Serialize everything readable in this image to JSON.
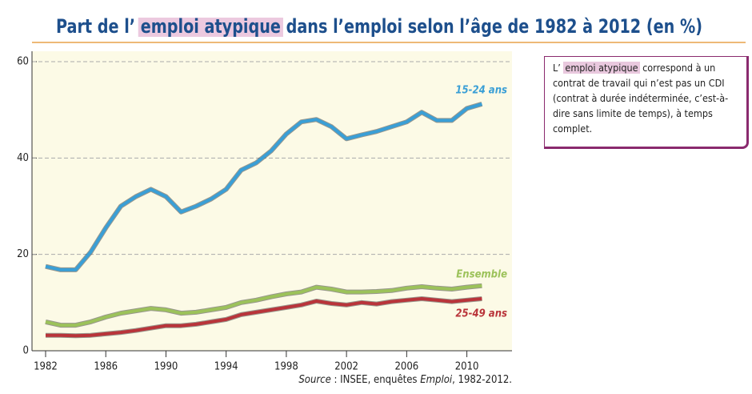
{
  "chart_data": {
    "type": "line",
    "title": [
      "Part de l’ ",
      "emploi atypique",
      " dans l’emploi selon l’âge de 1982 à 2012 (en %)"
    ],
    "x": [
      1982,
      1983,
      1984,
      1985,
      1986,
      1987,
      1988,
      1989,
      1990,
      1991,
      1992,
      1993,
      1994,
      1995,
      1996,
      1997,
      1998,
      1999,
      2000,
      2001,
      2002,
      2003,
      2004,
      2005,
      2006,
      2007,
      2008,
      2009,
      2010,
      2011
    ],
    "series": [
      {
        "name": "15-24 ans",
        "color": "#3a9fd6",
        "values": [
          17.5,
          16.8,
          16.8,
          20.5,
          25.5,
          30,
          32,
          33.5,
          32,
          28.8,
          30,
          31.5,
          33.5,
          37.5,
          39,
          41.5,
          45,
          47.5,
          48,
          46.5,
          44,
          44.8,
          45.5,
          46.5,
          47.5,
          49.5,
          47.8,
          47.8,
          50.3,
          51.2
        ]
      },
      {
        "name": "Ensemble",
        "color": "#9cc25a",
        "values": [
          6,
          5.3,
          5.3,
          6,
          7,
          7.8,
          8.3,
          8.8,
          8.5,
          7.8,
          8,
          8.5,
          9,
          10,
          10.5,
          11.2,
          11.8,
          12.2,
          13.2,
          12.8,
          12.2,
          12.2,
          12.3,
          12.5,
          13,
          13.3,
          13,
          12.8,
          13.2,
          13.5
        ]
      },
      {
        "name": "25-49 ans",
        "color": "#b9343a",
        "values": [
          3.2,
          3.2,
          3.1,
          3.2,
          3.5,
          3.8,
          4.2,
          4.7,
          5.2,
          5.2,
          5.5,
          6,
          6.5,
          7.5,
          8,
          8.5,
          9,
          9.5,
          10.3,
          9.8,
          9.5,
          10,
          9.7,
          10.2,
          10.5,
          10.8,
          10.5,
          10.2,
          10.5,
          10.8
        ]
      }
    ],
    "xlim": [
      1982,
      2013
    ],
    "xticks": [
      1982,
      1986,
      1990,
      1994,
      1998,
      2002,
      2006,
      2010
    ],
    "ylim": [
      0,
      60
    ],
    "yticks": [
      0,
      20,
      40,
      60
    ],
    "grid": true,
    "source": [
      "Source",
      " : INSEE, enquêtes ",
      "Emploi",
      ", 1982-2012."
    ],
    "note": [
      "L’ ",
      "emploi atypique",
      " correspond à un contrat de travail qui n’est pas un CDI (contrat à durée indéterminée, c’est-à-dire sans limite de temps), à temps complet."
    ]
  }
}
